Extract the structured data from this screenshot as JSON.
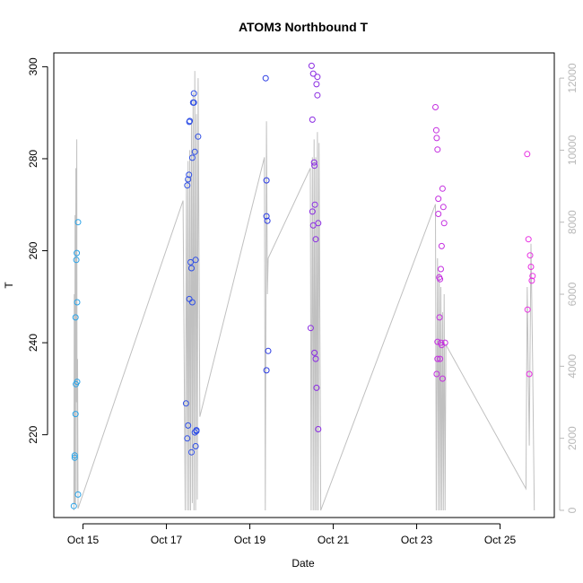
{
  "chart_data": {
    "type": "scatter",
    "title": "ATOM3 Northbound T",
    "xlabel": "Date",
    "ylabel": "T",
    "x_ticks": [
      "Oct 15",
      "Oct 17",
      "Oct 19",
      "Oct 21",
      "Oct 23",
      "Oct 25"
    ],
    "x_tick_values": [
      15,
      17,
      19,
      21,
      23,
      25
    ],
    "xlim": [
      14.3,
      26.3
    ],
    "y_ticks": [
      220,
      240,
      260,
      280,
      300
    ],
    "ylim": [
      202,
      303
    ],
    "y2_ticks": [
      0,
      2000,
      4000,
      6000,
      8000,
      10000,
      12000
    ],
    "y2lim": [
      -200,
      12700
    ],
    "grid": false,
    "legend": "none",
    "colors": {
      "oct14_15": "#29a3e8",
      "oct17_18": "#2f4fe6",
      "oct19": "#2a3be4",
      "oct20_21": "#8a2be2",
      "oct23_24": "#c42ee0",
      "oct25_26": "#e82fe2",
      "altitude_line": "#c0c0c0"
    },
    "series": [
      {
        "color_key": "oct14_15",
        "x": [
          14.78,
          14.8,
          14.8,
          14.82,
          14.83,
          14.82,
          14.84,
          14.85,
          14.86,
          14.86,
          14.88,
          14.88
        ],
        "y": [
          204.5,
          215,
          215.5,
          224.5,
          231,
          245.5,
          258,
          259.5,
          248.8,
          231.5,
          207,
          266.2
        ]
      },
      {
        "color_key": "oct17_18",
        "x": [
          17.47,
          17.5,
          17.5,
          17.52,
          17.54,
          17.55,
          17.56,
          17.58,
          17.6,
          17.62,
          17.64,
          17.66,
          17.68,
          17.7,
          17.7,
          17.72,
          17.72,
          17.76,
          17.55,
          17.6,
          17.62,
          17.68,
          17.66,
          17.52
        ],
        "y": [
          226.8,
          219.2,
          274.2,
          275.5,
          276.5,
          288,
          288.2,
          257.5,
          256.2,
          280.2,
          292.2,
          294.2,
          281.5,
          258,
          217.5,
          220.8,
          221,
          284.8,
          249.5,
          216.2,
          248.8,
          220.5,
          292.2,
          222
        ]
      },
      {
        "color_key": "oct19",
        "x": [
          19.38,
          19.4,
          19.4,
          19.42,
          19.44,
          19.4
        ],
        "y": [
          297.5,
          275.3,
          267.5,
          266.5,
          238.2,
          234
        ]
      },
      {
        "color_key": "oct20_21",
        "x": [
          20.48,
          20.5,
          20.5,
          20.52,
          20.54,
          20.55,
          20.56,
          20.58,
          20.6,
          20.62,
          20.64,
          20.64,
          20.6,
          20.58,
          20.62,
          20.55
        ],
        "y": [
          300.2,
          288.5,
          268.5,
          265.5,
          279.2,
          278.5,
          270,
          262.5,
          296.2,
          293.8,
          266,
          221.2,
          230.2,
          236.5,
          297.8,
          237.8
        ]
      },
      {
        "color_key": "oct20_21",
        "x": [
          20.46,
          20.52
        ],
        "y": [
          243.2,
          298.5
        ]
      },
      {
        "color_key": "oct23_24",
        "x": [
          23.45,
          23.47,
          23.48,
          23.5,
          23.52,
          23.52,
          23.54,
          23.55,
          23.56,
          23.58,
          23.6,
          23.62,
          23.64,
          23.66,
          23.68,
          23.5,
          23.5,
          23.56,
          23.6,
          23.62
        ],
        "y": [
          291.2,
          286.2,
          284.5,
          282,
          271.3,
          268,
          254.2,
          245.5,
          253.8,
          256,
          261,
          273.5,
          269.5,
          266,
          240,
          240.2,
          236.5,
          236.5,
          239.5,
          232.2
        ]
      },
      {
        "color_key": "oct23_24",
        "x": [
          23.48,
          23.58
        ],
        "y": [
          233.2,
          240
        ]
      },
      {
        "color_key": "oct25_26",
        "x": [
          25.65,
          25.68,
          25.72,
          25.74,
          25.76,
          25.78,
          25.7,
          25.66
        ],
        "y": [
          281,
          262.5,
          259,
          256.5,
          253.5,
          254.5,
          233.2,
          247.2
        ]
      }
    ],
    "altitude_line": {
      "axis": "right",
      "x": [
        14.78,
        14.79,
        14.8,
        14.81,
        14.82,
        14.83,
        14.84,
        14.85,
        14.86,
        14.87,
        14.88,
        17.4,
        17.45,
        17.48,
        17.5,
        17.52,
        17.54,
        17.56,
        17.58,
        17.6,
        17.62,
        17.64,
        17.66,
        17.68,
        17.7,
        17.72,
        17.74,
        17.76,
        17.8,
        19.35,
        19.37,
        19.4,
        19.42,
        19.44,
        20.45,
        20.47,
        20.5,
        20.52,
        20.54,
        20.56,
        20.58,
        20.6,
        20.62,
        20.64,
        20.66,
        20.7,
        23.45,
        23.47,
        23.5,
        23.52,
        23.54,
        23.56,
        23.58,
        23.6,
        23.62,
        23.64,
        23.66,
        23.68,
        23.7,
        25.62,
        25.65,
        25.7,
        25.74,
        25.78,
        25.82
      ],
      "y": [
        0,
        6000,
        200,
        8200,
        150,
        9500,
        3000,
        10300,
        500,
        4200,
        50,
        8600,
        0,
        9200,
        0,
        9700,
        0,
        10000,
        0,
        10800,
        200,
        11600,
        0,
        12200,
        0,
        11000,
        300,
        12000,
        2600,
        9800,
        0,
        10800,
        6000,
        7000,
        9500,
        0,
        9800,
        0,
        10300,
        0,
        9800,
        0,
        10500,
        0,
        10200,
        0,
        8500,
        0,
        7000,
        0,
        6600,
        0,
        6200,
        0,
        5500,
        0,
        6000,
        0,
        4600,
        600,
        6200,
        1800,
        7400,
        4200,
        0
      ]
    }
  }
}
